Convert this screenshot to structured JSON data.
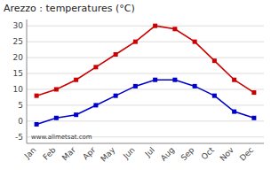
{
  "chart_data": {
    "type": "line",
    "title": "Arezzo : temperatures (°C)",
    "categories": [
      "Jan",
      "Feb",
      "Mar",
      "Apr",
      "May",
      "Jun",
      "Jul",
      "Aug",
      "Sep",
      "Oct",
      "Nov",
      "Dec"
    ],
    "series": [
      {
        "color": "#cc0000",
        "marker": "square",
        "values": [
          8,
          10,
          13,
          17,
          21,
          25,
          30,
          29,
          25,
          19,
          13,
          9
        ]
      },
      {
        "color": "#0000cc",
        "marker": "square",
        "values": [
          -1,
          1,
          2,
          5,
          8,
          11,
          13,
          13,
          11,
          8,
          3,
          1
        ]
      }
    ],
    "ylim": [
      -7,
      32
    ],
    "yticks": [
      -5,
      0,
      5,
      10,
      15,
      20,
      25,
      30
    ],
    "grid": true,
    "annotations": [
      "www.allmetsat.com"
    ]
  }
}
